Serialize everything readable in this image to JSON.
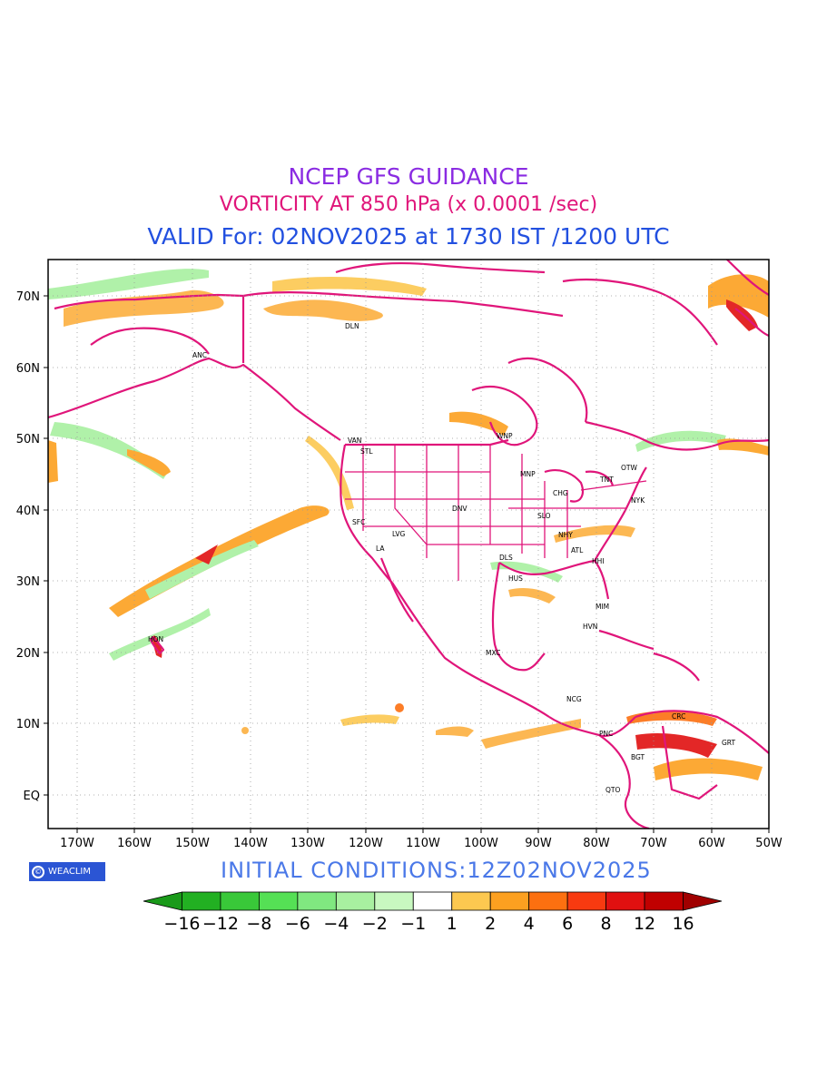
{
  "titles": {
    "line1": "NCEP GFS GUIDANCE",
    "line2": "VORTICITY AT 850 hPa (x 0.0001 /sec)",
    "line3": "VALID For: 02NOV2025 at 1730 IST /1200 UTC"
  },
  "map": {
    "lat_labels": [
      "70N",
      "60N",
      "50N",
      "40N",
      "30N",
      "20N",
      "10N",
      "EQ"
    ],
    "lon_labels": [
      "170W",
      "160W",
      "150W",
      "140W",
      "130W",
      "120W",
      "110W",
      "100W",
      "90W",
      "80W",
      "70W",
      "60W",
      "50W"
    ],
    "cities": [
      "DLN",
      "ANC",
      "VAN",
      "STL",
      "WNP",
      "OTW",
      "MNP",
      "TNT",
      "CHG",
      "NYK",
      "DNV",
      "SFC",
      "SLO",
      "LVG",
      "NHY",
      "LA",
      "ATL",
      "DLS",
      "HHI",
      "HUS",
      "MIM",
      "HON",
      "HVN",
      "MXC",
      "NCG",
      "CRC",
      "PNC",
      "GRT",
      "BGT",
      "QTO"
    ]
  },
  "logo": {
    "text": "WEACLIM",
    "icon": "copyright-circle-icon"
  },
  "initial_conditions": "INITIAL CONDITIONS:12Z02NOV2025",
  "colorbar": {
    "labels": [
      "-16",
      "-12",
      "-8",
      "-6",
      "-4",
      "-2",
      "-1",
      "1",
      "2",
      "4",
      "6",
      "8",
      "12",
      "16"
    ],
    "colors": [
      "#1a9a1a",
      "#22b022",
      "#39c839",
      "#55e055",
      "#80e880",
      "#a8f0a0",
      "#c8f8c0",
      "#ffffff",
      "#fcc850",
      "#fca020",
      "#fc7010",
      "#f83a10",
      "#e01010",
      "#c00000",
      "#a00000"
    ]
  }
}
